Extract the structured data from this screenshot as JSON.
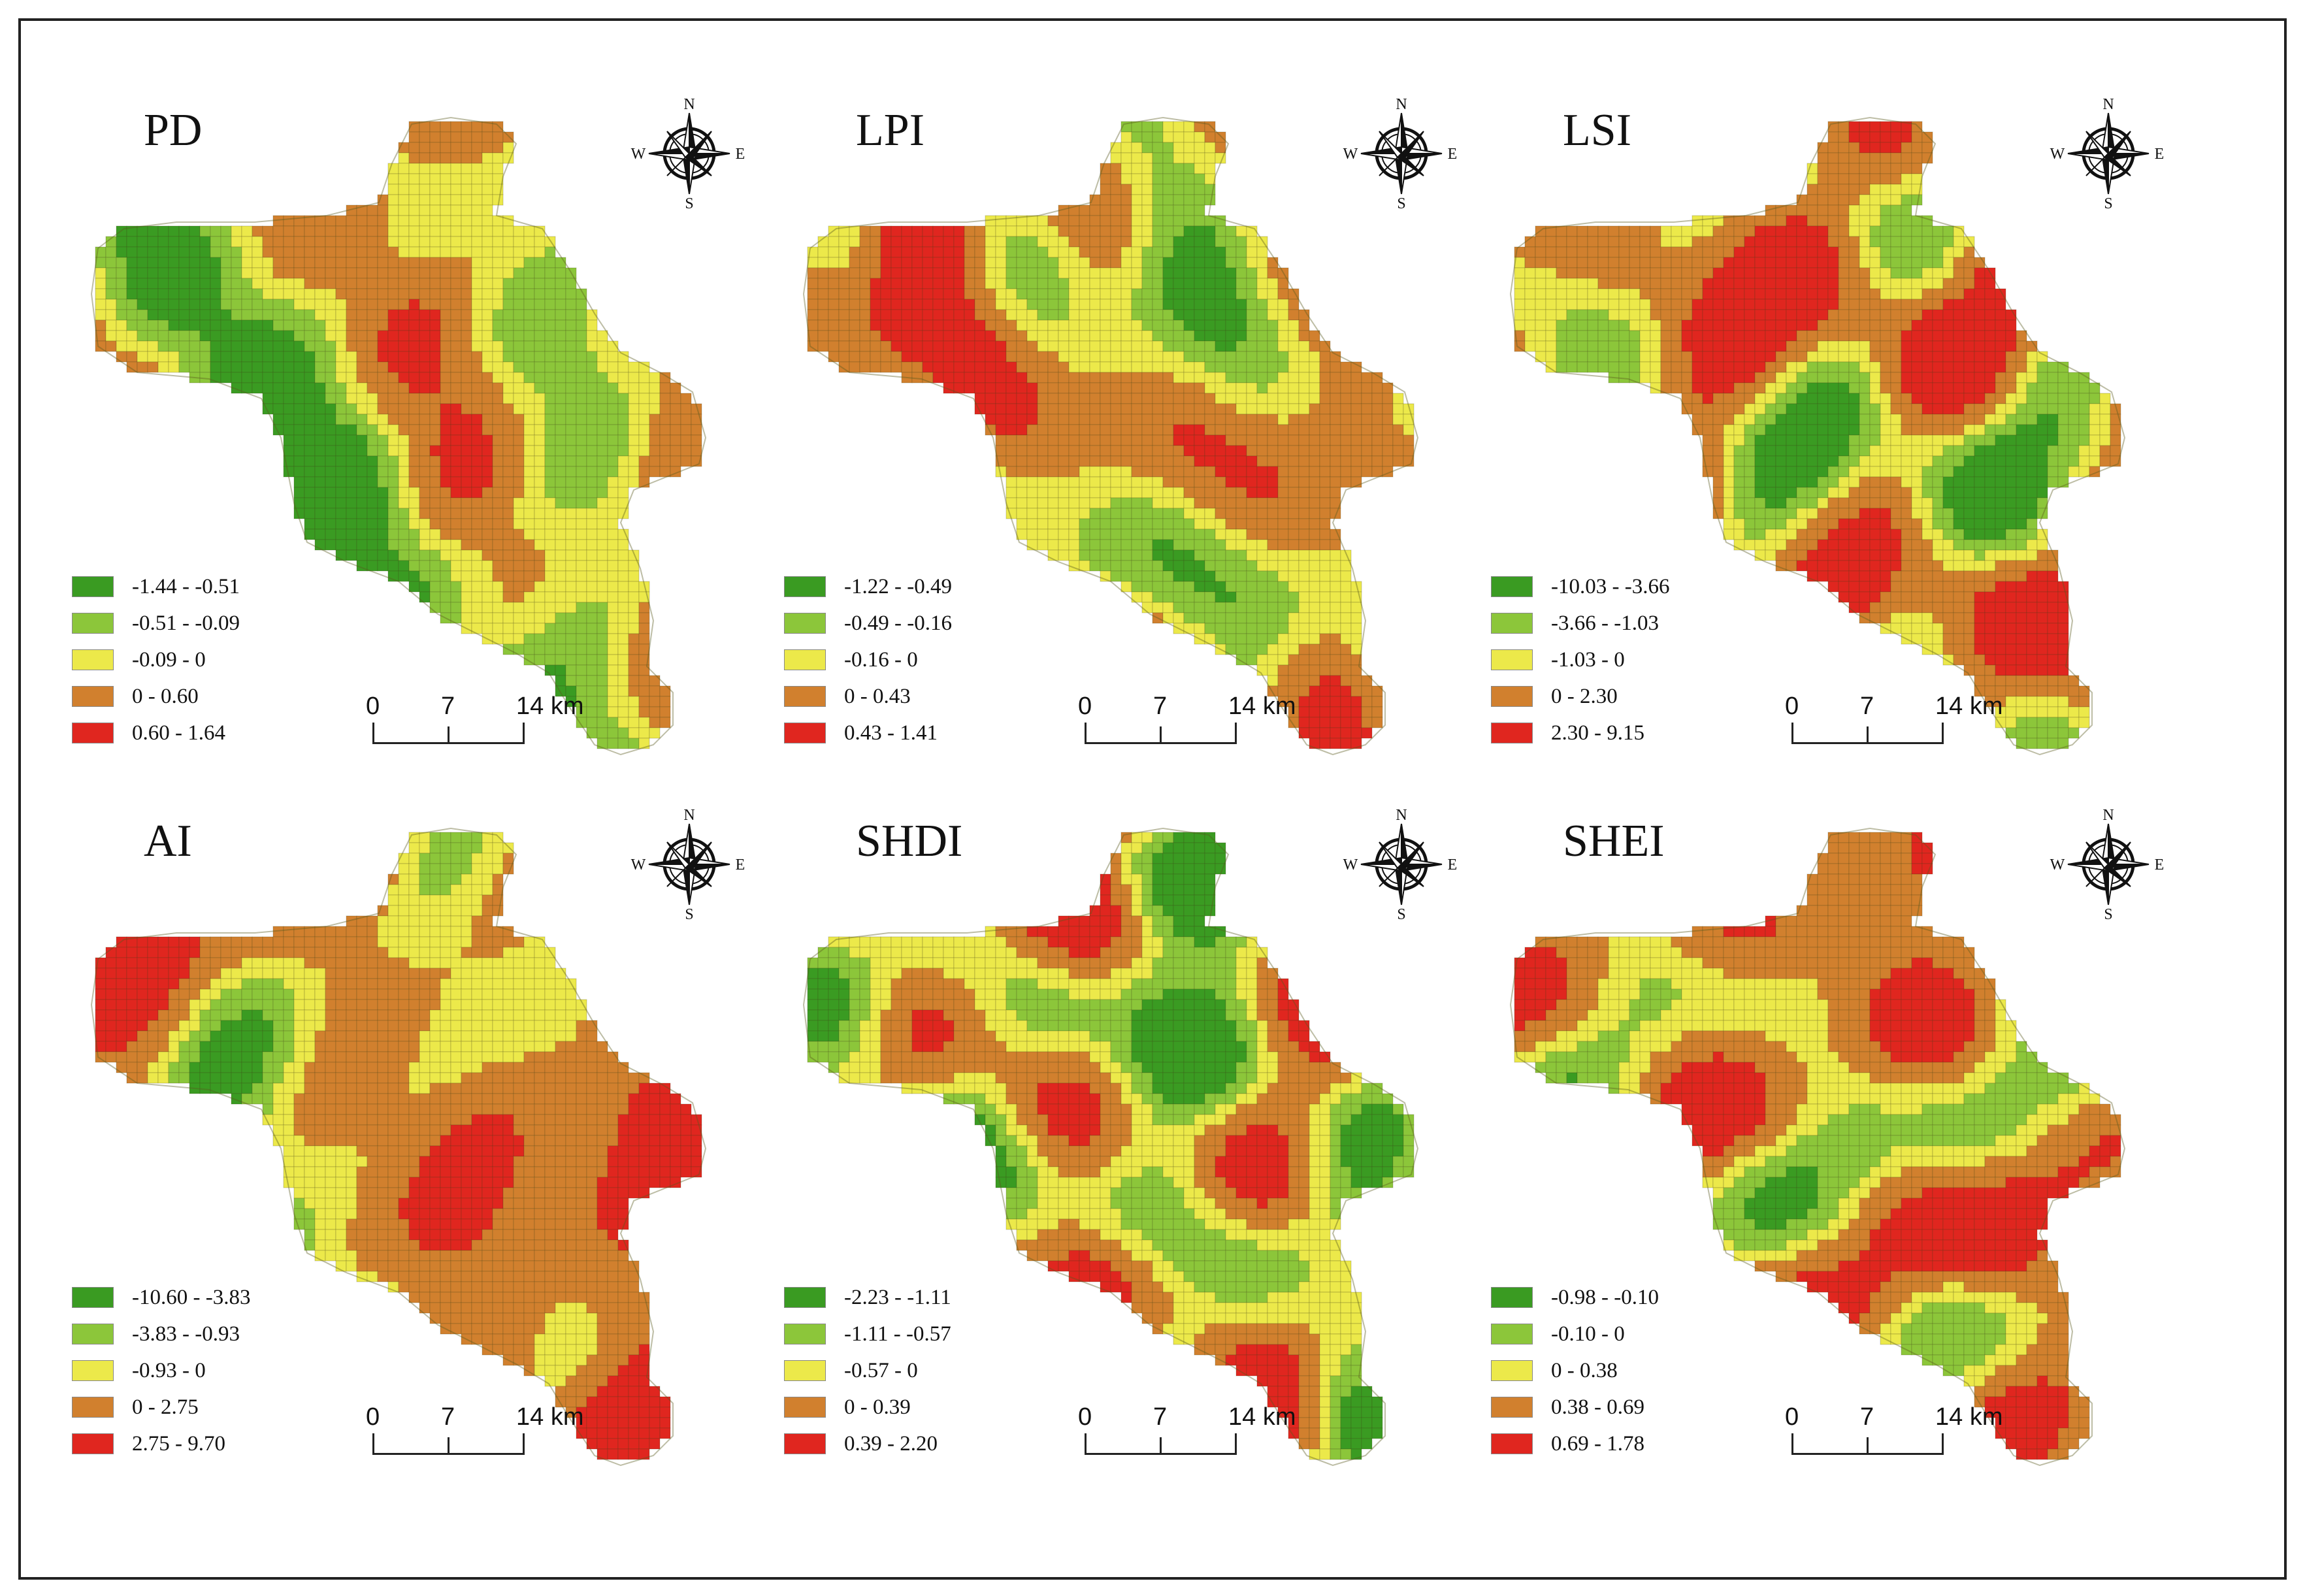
{
  "scale_bar": {
    "ticks": [
      "0",
      "7",
      "14 km"
    ]
  },
  "compass_letters": {
    "n": "N",
    "e": "E",
    "s": "S",
    "w": "W"
  },
  "colors": {
    "class1": "#3a9b22",
    "class2": "#8cc63a",
    "class3": "#ece94a",
    "class4": "#d1802e",
    "class5": "#e0261f"
  },
  "panels": [
    {
      "title": "PD",
      "legend": [
        "-1.44 - -0.51",
        "-0.51 - -0.09",
        "-0.09 - 0",
        "0 - 0.60",
        "0.60 - 1.64"
      ]
    },
    {
      "title": "LPI",
      "legend": [
        "-1.22 - -0.49",
        "-0.49 - -0.16",
        "-0.16 - 0",
        "0 - 0.43",
        "0.43 - 1.41"
      ]
    },
    {
      "title": "LSI",
      "legend": [
        "-10.03 - -3.66",
        "-3.66 - -1.03",
        "-1.03 - 0",
        "0 - 2.30",
        "2.30 - 9.15"
      ]
    },
    {
      "title": "AI",
      "legend": [
        "-10.60 - -3.83",
        "-3.83 - -0.93",
        "-0.93 - 0",
        "0 - 2.75",
        "2.75 - 9.70"
      ]
    },
    {
      "title": "SHDI",
      "legend": [
        "-2.23 - -1.11",
        "-1.11 - -0.57",
        "-0.57 - 0",
        "0 - 0.39",
        "0.39 - 2.20"
      ]
    },
    {
      "title": "SHEI",
      "legend": [
        "-0.98 - -0.10",
        "-0.10 - 0",
        "0 - 0.38",
        "0.38 - 0.69",
        "0.69 - 1.78"
      ]
    }
  ]
}
